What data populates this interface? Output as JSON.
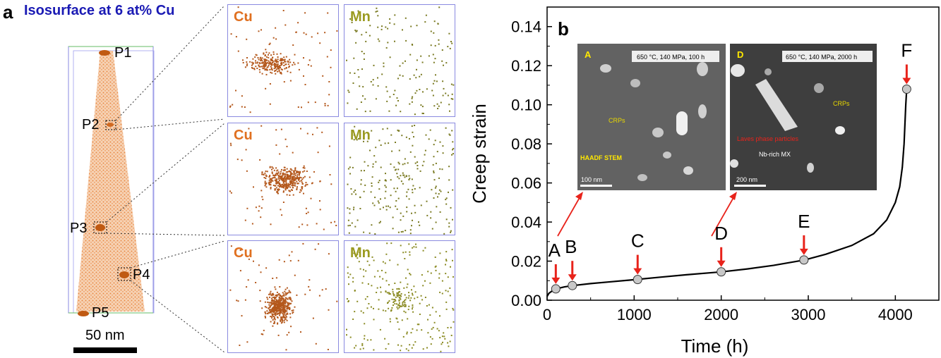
{
  "panel_a": {
    "label": "a",
    "title": "Isosurface at 6 at% Cu",
    "particles": [
      "P1",
      "P2",
      "P3",
      "P4",
      "P5"
    ],
    "scale_bar": "50 nm",
    "maps": [
      {
        "element": "Cu",
        "color": "#e07020"
      },
      {
        "element": "Mn",
        "color": "#9a9a20"
      },
      {
        "element": "Cu",
        "color": "#e07020"
      },
      {
        "element": "Mn",
        "color": "#9a9a20"
      },
      {
        "element": "Cu",
        "color": "#e07020"
      },
      {
        "element": "Mn",
        "color": "#9a9a20"
      }
    ]
  },
  "panel_b": {
    "label": "b",
    "inset_A": {
      "letter": "A",
      "condition": "650 °C, 140 MPa, 100 h",
      "labels": [
        "CRPs",
        "HAADF STEM"
      ],
      "scale": "100 nm"
    },
    "inset_D": {
      "letter": "D",
      "condition": "650 °C, 140 MPa, 2000 h",
      "labels": [
        "CRPs",
        "Laves phase particles",
        "Nb-rich MX"
      ],
      "scale": "200 nm"
    }
  },
  "chart_data": {
    "type": "line",
    "xlabel": "Time (h)",
    "ylabel": "Creep strain",
    "xlim": [
      0,
      4500
    ],
    "ylim": [
      0,
      0.15
    ],
    "x_ticks": [
      "0",
      "1000",
      "2000",
      "3000",
      "4000"
    ],
    "y_ticks": [
      "0.00",
      "0.02",
      "0.04",
      "0.06",
      "0.08",
      "0.10",
      "0.12",
      "0.14"
    ],
    "curve": {
      "x": [
        0,
        20,
        50,
        100,
        200,
        300,
        500,
        700,
        1000,
        1300,
        1600,
        2000,
        2300,
        2600,
        2950,
        3200,
        3500,
        3750,
        3900,
        4000,
        4050,
        4080,
        4100,
        4110,
        4120,
        4130
      ],
      "y": [
        0.002,
        0.0035,
        0.0045,
        0.0058,
        0.0068,
        0.0075,
        0.0085,
        0.0093,
        0.0105,
        0.0118,
        0.013,
        0.0145,
        0.016,
        0.0178,
        0.0205,
        0.0235,
        0.028,
        0.034,
        0.041,
        0.05,
        0.058,
        0.068,
        0.08,
        0.09,
        0.1,
        0.108
      ]
    },
    "points": [
      {
        "label": "A",
        "x": 100,
        "y": 0.0058
      },
      {
        "label": "B",
        "x": 290,
        "y": 0.0075
      },
      {
        "label": "C",
        "x": 1040,
        "y": 0.0106
      },
      {
        "label": "D",
        "x": 2000,
        "y": 0.0145
      },
      {
        "label": "E",
        "x": 2950,
        "y": 0.0206
      },
      {
        "label": "F",
        "x": 4130,
        "y": 0.108
      }
    ],
    "marker_color": "#c8c8c8",
    "arrow_color": "#e8231b"
  }
}
